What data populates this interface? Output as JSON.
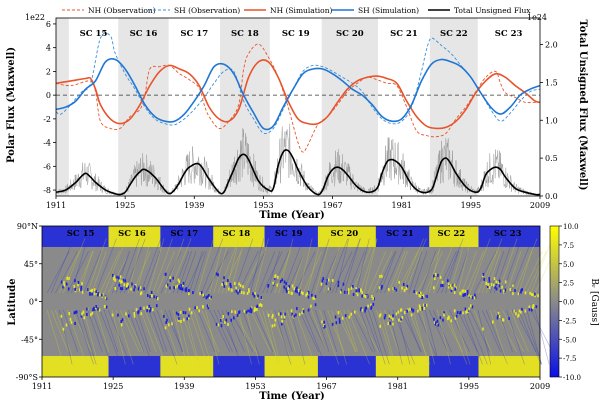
{
  "chart_data": [
    {
      "type": "line",
      "xlabel": "Time (Year)",
      "ylabel": "Polar Flux (Maxwell)",
      "y2label": "Total Unsigned Flux (Maxwell)",
      "x_ticks": [
        "1911",
        "1925",
        "1939",
        "1953",
        "1967",
        "1981",
        "1995",
        "2009"
      ],
      "x_tick_values": [
        1911,
        1925,
        1939,
        1953,
        1967,
        1981,
        1995,
        2009
      ],
      "xlim": [
        1911,
        2009
      ],
      "ylim": [
        -8.5,
        6.5
      ],
      "y_ticks": [
        "-8",
        "-6",
        "-4",
        "-2",
        "0",
        "2",
        "4",
        "6"
      ],
      "y_tick_values": [
        -8,
        -6,
        -4,
        -2,
        0,
        2,
        4,
        6
      ],
      "y_offset_label": "1e22",
      "y2lim": [
        0,
        2.35
      ],
      "y2_ticks": [
        "0.0",
        "0.5",
        "1.0",
        "1.5",
        "2.0"
      ],
      "y2_tick_values": [
        0,
        0.5,
        1.0,
        1.5,
        2.0
      ],
      "y2_offset_label": "1e24",
      "zero_line": true,
      "cycles": [
        {
          "label": "SC 15",
          "start": 1913.6,
          "end": 1923.6,
          "shaded": false
        },
        {
          "label": "SC 16",
          "start": 1923.6,
          "end": 1933.8,
          "shaded": true
        },
        {
          "label": "SC 17",
          "start": 1933.8,
          "end": 1944.2,
          "shaded": false
        },
        {
          "label": "SC 18",
          "start": 1944.2,
          "end": 1954.3,
          "shaded": true
        },
        {
          "label": "SC 19",
          "start": 1954.3,
          "end": 1964.8,
          "shaded": false
        },
        {
          "label": "SC 20",
          "start": 1964.8,
          "end": 1976.2,
          "shaded": true
        },
        {
          "label": "SC 21",
          "start": 1976.2,
          "end": 1986.7,
          "shaded": false
        },
        {
          "label": "SC 22",
          "start": 1986.7,
          "end": 1996.4,
          "shaded": true
        },
        {
          "label": "SC 23",
          "start": 1996.4,
          "end": 2008.9,
          "shaded": false
        }
      ],
      "pre_shade": {
        "start": 1911,
        "end": 1913.6
      },
      "legend": {
        "placement": "top",
        "entries": [
          "NH (Observation)",
          "SH (Observation)",
          "NH (Simulation)",
          "SH (Simulation)",
          "Total Unsigned Flux"
        ]
      },
      "series": [
        {
          "name": "NH (Observation)",
          "color": "#e8542b",
          "dash": true,
          "x": [
            1911,
            1914,
            1918,
            1919,
            1920,
            1922,
            1924,
            1926,
            1928,
            1929,
            1930,
            1932,
            1934,
            1936,
            1938,
            1940,
            1941,
            1942,
            1944,
            1946,
            1948,
            1949,
            1950,
            1952,
            1954,
            1956,
            1958,
            1960,
            1961,
            1962,
            1964,
            1966,
            1968,
            1970,
            1972,
            1974,
            1976,
            1978,
            1980,
            1982,
            1984,
            1986,
            1988,
            1990,
            1992,
            1994,
            1996,
            1998,
            2000,
            2001,
            2002,
            2004,
            2006,
            2008,
            2009
          ],
          "y": [
            1.0,
            0.8,
            1.2,
            0.3,
            -2.2,
            -2.8,
            -2.8,
            -1.8,
            -1.2,
            0,
            2.2,
            2.4,
            2.5,
            1.8,
            1.3,
            0.6,
            -0.8,
            -1.8,
            -2.8,
            -2.2,
            -0.8,
            2.2,
            3.5,
            4.3,
            3.2,
            1.5,
            -1.0,
            -4.0,
            -4.8,
            -4.2,
            -2.5,
            -1.8,
            -0.8,
            0.3,
            1.0,
            1.5,
            1.3,
            1.0,
            0.8,
            -1.0,
            -3.0,
            -3.4,
            -3.5,
            -3.2,
            -2.0,
            -1.0,
            0.3,
            1.5,
            2.0,
            1.0,
            0.2,
            -0.2,
            -0.6,
            -0.6,
            -0.6
          ]
        },
        {
          "name": "SH (Observation)",
          "color": "#3b8fd9",
          "dash": true,
          "x": [
            1911,
            1912,
            1914,
            1916,
            1918,
            1920,
            1922,
            1923,
            1925,
            1927,
            1929,
            1931,
            1933,
            1935,
            1937,
            1939,
            1941,
            1943,
            1945,
            1947,
            1949,
            1951,
            1953,
            1955,
            1957,
            1959,
            1961,
            1963,
            1965,
            1967,
            1969,
            1971,
            1973,
            1975,
            1977,
            1979,
            1981,
            1983,
            1985,
            1986,
            1987,
            1989,
            1991,
            1993,
            1995,
            1997,
            1999,
            2001,
            2003,
            2005,
            2007,
            2009
          ],
          "y": [
            -1.4,
            -1.6,
            -0.8,
            0.2,
            1.0,
            4.8,
            5.0,
            3.5,
            1.8,
            0.5,
            -1.0,
            -2.0,
            -2.4,
            -2.5,
            -2.0,
            -1.2,
            -0.2,
            1.0,
            2.0,
            2.0,
            -0.5,
            -2.0,
            -3.2,
            -2.8,
            -1.2,
            0.5,
            2.0,
            2.5,
            2.4,
            2.0,
            1.5,
            1.0,
            0.3,
            -1.0,
            -2.0,
            -2.4,
            -2.2,
            -1.0,
            2.0,
            3.8,
            4.8,
            4.2,
            3.5,
            2.5,
            1.5,
            0.2,
            -1.2,
            -2.2,
            -1.5,
            -0.5,
            0.3,
            0.5
          ]
        },
        {
          "name": "NH (Simulation)",
          "color": "#e8542b",
          "dash": false,
          "x": [
            1911,
            1914,
            1917,
            1918,
            1919,
            1920,
            1922,
            1924,
            1926,
            1928,
            1930,
            1932,
            1934,
            1936,
            1938,
            1940,
            1942,
            1944,
            1946,
            1948,
            1950,
            1952,
            1954,
            1956,
            1958,
            1960,
            1962,
            1964,
            1966,
            1968,
            1970,
            1972,
            1974,
            1976,
            1978,
            1980,
            1982,
            1984,
            1986,
            1988,
            1990,
            1992,
            1994,
            1996,
            1998,
            2000,
            2002,
            2004,
            2006,
            2008,
            2009
          ],
          "y": [
            1.0,
            1.2,
            1.4,
            1.4,
            0.5,
            -0.8,
            -2.0,
            -2.4,
            -2.0,
            -0.8,
            0.8,
            2.0,
            2.5,
            2.2,
            1.8,
            0.8,
            -1.0,
            -2.0,
            -2.2,
            -1.2,
            1.5,
            2.8,
            2.8,
            1.5,
            -0.5,
            -2.0,
            -2.4,
            -2.4,
            -1.8,
            -0.6,
            0.5,
            1.2,
            1.5,
            1.6,
            1.4,
            1.0,
            -0.5,
            -1.8,
            -2.6,
            -2.8,
            -2.7,
            -2.2,
            -1.2,
            0.2,
            1.2,
            1.8,
            1.5,
            0.8,
            0.2,
            -0.5,
            -0.6
          ]
        },
        {
          "name": "SH (Simulation)",
          "color": "#1f77d4",
          "dash": false,
          "x": [
            1911,
            1913,
            1915,
            1917,
            1919,
            1921,
            1923,
            1925,
            1927,
            1929,
            1931,
            1933,
            1935,
            1937,
            1939,
            1941,
            1943,
            1945,
            1947,
            1949,
            1951,
            1953,
            1955,
            1957,
            1959,
            1961,
            1963,
            1965,
            1967,
            1969,
            1971,
            1973,
            1975,
            1977,
            1979,
            1981,
            1983,
            1985,
            1987,
            1989,
            1991,
            1993,
            1995,
            1997,
            1999,
            2001,
            2003,
            2005,
            2007,
            2009
          ],
          "y": [
            -1.2,
            -1.0,
            -0.5,
            0.5,
            1.2,
            2.8,
            3.0,
            2.2,
            0.8,
            -0.8,
            -1.8,
            -2.2,
            -2.2,
            -1.6,
            -0.5,
            0.8,
            2.4,
            2.6,
            1.8,
            0.0,
            -1.5,
            -2.8,
            -2.6,
            -1.0,
            0.5,
            1.8,
            2.2,
            2.2,
            1.8,
            1.2,
            0.5,
            0.0,
            -0.8,
            -1.8,
            -2.2,
            -2.0,
            -0.8,
            1.2,
            2.6,
            3.0,
            2.8,
            2.4,
            1.5,
            0.2,
            -1.0,
            -1.6,
            -1.0,
            0.0,
            0.5,
            0.8
          ]
        },
        {
          "name": "Total Unsigned Flux",
          "color": "#000000",
          "dash": false,
          "axis": "right",
          "x": [
            1911,
            1913,
            1915,
            1916,
            1917,
            1918,
            1919,
            1921,
            1923,
            1924,
            1925,
            1926,
            1927,
            1928,
            1929,
            1931,
            1933,
            1934,
            1935,
            1936,
            1937,
            1938,
            1940,
            1942,
            1944,
            1945,
            1946,
            1947,
            1948,
            1949,
            1950,
            1952,
            1954,
            1955,
            1956,
            1957,
            1958,
            1959,
            1960,
            1962,
            1964,
            1965,
            1966,
            1967,
            1968,
            1969,
            1970,
            1972,
            1974,
            1976,
            1977,
            1978,
            1979,
            1980,
            1981,
            1983,
            1985,
            1987,
            1988,
            1989,
            1990,
            1991,
            1992,
            1994,
            1996,
            1997,
            1998,
            1999,
            2000,
            2001,
            2002,
            2004,
            2006,
            2008,
            2009
          ],
          "y": [
            0.05,
            0.08,
            0.18,
            0.25,
            0.3,
            0.25,
            0.18,
            0.08,
            0.03,
            0.02,
            0.05,
            0.15,
            0.25,
            0.32,
            0.35,
            0.25,
            0.08,
            0.03,
            0.08,
            0.18,
            0.3,
            0.38,
            0.42,
            0.22,
            0.05,
            0.05,
            0.2,
            0.35,
            0.5,
            0.55,
            0.48,
            0.2,
            0.08,
            0.1,
            0.4,
            0.58,
            0.6,
            0.5,
            0.35,
            0.12,
            0.02,
            0.08,
            0.25,
            0.35,
            0.38,
            0.35,
            0.28,
            0.12,
            0.05,
            0.1,
            0.3,
            0.45,
            0.48,
            0.45,
            0.38,
            0.15,
            0.05,
            0.08,
            0.25,
            0.45,
            0.5,
            0.42,
            0.3,
            0.12,
            0.05,
            0.1,
            0.28,
            0.35,
            0.38,
            0.35,
            0.25,
            0.1,
            0.05,
            0.02,
            0.02
          ]
        }
      ]
    },
    {
      "type": "heatmap",
      "xlabel": "Time (Year)",
      "ylabel": "Latitude",
      "x_ticks": [
        "1911",
        "1925",
        "1939",
        "1953",
        "1967",
        "1981",
        "1995",
        "2009"
      ],
      "x_tick_values": [
        1911,
        1925,
        1939,
        1953,
        1967,
        1981,
        1995,
        2009
      ],
      "xlim": [
        1911,
        2009
      ],
      "ylim": [
        -90,
        90
      ],
      "y_ticks": [
        "-90°S",
        "-45°",
        "0°",
        "45°",
        "90°N"
      ],
      "y_tick_values": [
        -90,
        -45,
        0,
        45,
        90
      ],
      "colorbar": {
        "label": "Bᵣ [Gauss]",
        "range": [
          -10,
          10
        ],
        "ticks": [
          "10.0",
          "7.5",
          "5.0",
          "2.5",
          "0.0",
          "-2.5",
          "-5.0",
          "-7.5",
          "-10.0"
        ],
        "tick_values": [
          10,
          7.5,
          5,
          2.5,
          0,
          -2.5,
          -5,
          -7.5,
          -10
        ],
        "colors": {
          "low": "#0a10e8",
          "mid": "#8a8a8a",
          "high": "#ffff00"
        }
      },
      "cycle_labels": [
        "SC 15",
        "SC 16",
        "SC 17",
        "SC 18",
        "SC 19",
        "SC 20",
        "SC 21",
        "SC 22",
        "SC 23"
      ]
    }
  ]
}
